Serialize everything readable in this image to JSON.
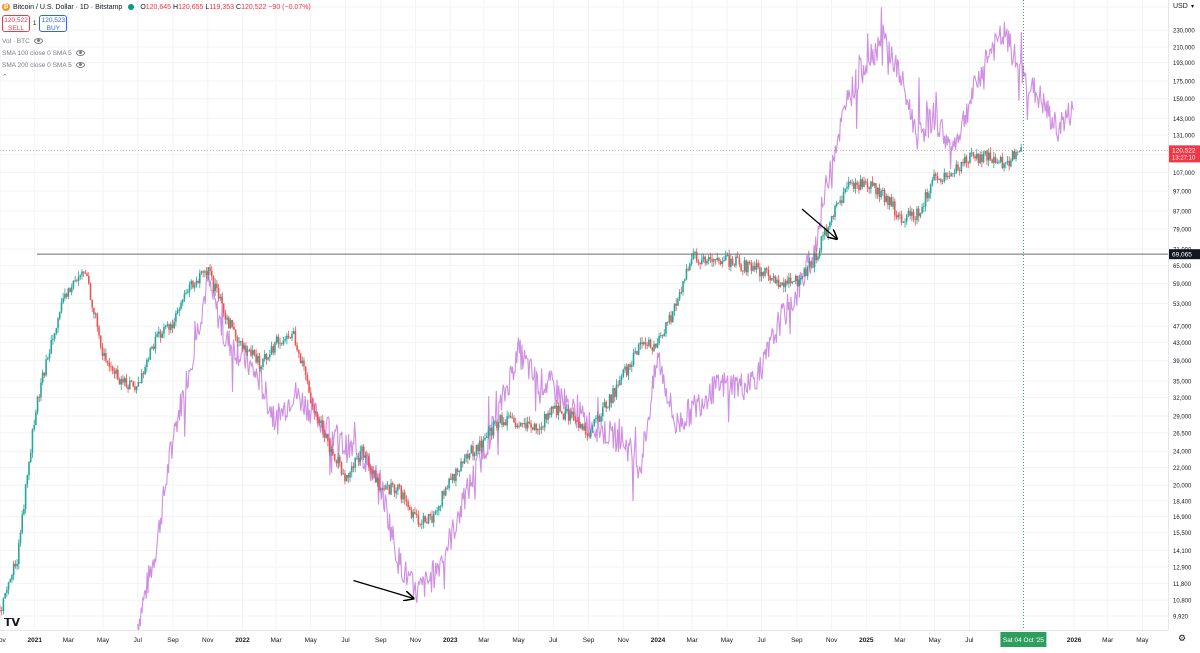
{
  "header": {
    "symbol_title": "Bitcoin / U.S. Dollar · 1D · Bitstamp",
    "ohlc": {
      "o_label": "O",
      "o": "120,645",
      "h_label": "H",
      "h": "120,655",
      "l_label": "L",
      "l": "119,353",
      "c_label": "C",
      "c": "120,522",
      "change": "−90 (−0.07%)"
    },
    "sell_price": "120,522",
    "sell_label": "SELL",
    "spread": "1",
    "buy_price": "120,523",
    "buy_label": "BUY",
    "indicators": [
      "Vol · BTC",
      "SMA 100 close 0 SMA 5",
      "SMA 200 close 0 SMA 5"
    ]
  },
  "price_axis": {
    "currency": "USD",
    "last_price": "120,522",
    "countdown": "13:27:10",
    "level_label": "69,065"
  },
  "time_axis": {
    "crosshair_label": "Sat 04 Oct '25"
  },
  "colors": {
    "up": "#26a69a",
    "down": "#ef5350",
    "overlay": "#c77bdd",
    "level": "#6b6b6b",
    "crosshair": "#2e9e5e",
    "price": "#f23645"
  },
  "chart_data": {
    "type": "line",
    "title": "Bitcoin / U.S. Dollar · 1D · Bitstamp",
    "y_scale": "log",
    "ylim": [
      9200,
      270000
    ],
    "xlim": [
      "2020-11-01",
      "2026-06-15"
    ],
    "y_ticks": [
      9920,
      10800,
      11800,
      12900,
      14100,
      15500,
      16900,
      18400,
      20000,
      22000,
      24000,
      26500,
      29000,
      32000,
      35000,
      39000,
      43000,
      47000,
      53000,
      59000,
      65000,
      71000,
      79000,
      87000,
      97000,
      107000,
      118000,
      131000,
      143000,
      159000,
      175000,
      193000,
      210000,
      230000,
      260000
    ],
    "x_ticks": [
      {
        "date": "2020-11-01",
        "label": "Nov"
      },
      {
        "date": "2021-01-01",
        "label": "2021"
      },
      {
        "date": "2021-03-01",
        "label": "Mar"
      },
      {
        "date": "2021-05-01",
        "label": "May"
      },
      {
        "date": "2021-07-01",
        "label": "Jul"
      },
      {
        "date": "2021-09-01",
        "label": "Sep"
      },
      {
        "date": "2021-11-01",
        "label": "Nov"
      },
      {
        "date": "2022-01-01",
        "label": "2022"
      },
      {
        "date": "2022-03-01",
        "label": "Mar"
      },
      {
        "date": "2022-05-01",
        "label": "May"
      },
      {
        "date": "2022-07-01",
        "label": "Jul"
      },
      {
        "date": "2022-09-01",
        "label": "Sep"
      },
      {
        "date": "2022-11-01",
        "label": "Nov"
      },
      {
        "date": "2023-01-01",
        "label": "2023"
      },
      {
        "date": "2023-03-01",
        "label": "Mar"
      },
      {
        "date": "2023-05-01",
        "label": "May"
      },
      {
        "date": "2023-07-01",
        "label": "Jul"
      },
      {
        "date": "2023-09-01",
        "label": "Sep"
      },
      {
        "date": "2023-11-01",
        "label": "Nov"
      },
      {
        "date": "2024-01-01",
        "label": "2024"
      },
      {
        "date": "2024-03-01",
        "label": "Mar"
      },
      {
        "date": "2024-05-01",
        "label": "May"
      },
      {
        "date": "2024-07-01",
        "label": "Jul"
      },
      {
        "date": "2024-09-01",
        "label": "Sep"
      },
      {
        "date": "2024-11-01",
        "label": "Nov"
      },
      {
        "date": "2025-01-01",
        "label": "2025"
      },
      {
        "date": "2025-03-01",
        "label": "Mar"
      },
      {
        "date": "2025-05-01",
        "label": "May"
      },
      {
        "date": "2025-07-01",
        "label": "Jul"
      },
      {
        "date": "2026-01-01",
        "label": "2026"
      },
      {
        "date": "2026-03-01",
        "label": "Mar"
      },
      {
        "date": "2026-05-01",
        "label": "May"
      }
    ],
    "series": [
      {
        "kind": "candles",
        "dates": [
          "2020-11-01",
          "2020-12-01",
          "2021-01-01",
          "2021-02-01",
          "2021-03-01",
          "2021-04-01",
          "2021-05-01",
          "2021-06-01",
          "2021-07-01",
          "2021-08-01",
          "2021-09-01",
          "2021-10-01",
          "2021-11-01",
          "2021-12-01",
          "2022-01-01",
          "2022-02-01",
          "2022-03-01",
          "2022-04-01",
          "2022-05-01",
          "2022-06-01",
          "2022-07-01",
          "2022-08-01",
          "2022-09-01",
          "2022-10-01",
          "2022-11-01",
          "2022-12-01",
          "2023-01-01",
          "2023-02-01",
          "2023-03-01",
          "2023-04-01",
          "2023-05-01",
          "2023-06-01",
          "2023-07-01",
          "2023-08-01",
          "2023-09-01",
          "2023-10-01",
          "2023-11-01",
          "2023-12-01",
          "2024-01-01",
          "2024-02-01",
          "2024-03-01",
          "2024-04-01",
          "2024-05-01",
          "2024-06-01",
          "2024-07-01",
          "2024-08-01",
          "2024-09-01",
          "2024-10-01",
          "2024-11-01",
          "2024-12-01",
          "2025-01-01",
          "2025-02-01",
          "2025-03-01",
          "2025-04-01",
          "2025-05-01",
          "2025-06-01",
          "2025-07-01",
          "2025-08-01",
          "2025-09-01",
          "2025-10-01"
        ],
        "values": [
          10200,
          13500,
          29000,
          45000,
          57000,
          63000,
          40000,
          35000,
          34000,
          44000,
          48000,
          58000,
          63000,
          50000,
          42000,
          38500,
          43000,
          45000,
          32000,
          25000,
          21000,
          24000,
          19500,
          19800,
          16500,
          16800,
          20500,
          23500,
          25500,
          28500,
          27500,
          27000,
          30000,
          29000,
          26500,
          30500,
          36000,
          42000,
          42500,
          52000,
          68000,
          66000,
          67000,
          65000,
          63000,
          59000,
          60000,
          67000,
          84000,
          99000,
          102000,
          95000,
          84000,
          86000,
          104000,
          107000,
          115000,
          117000,
          112000,
          120522
        ]
      },
      {
        "kind": "line",
        "dates": [
          "2021-07-01",
          "2021-08-01",
          "2021-09-01",
          "2021-10-01",
          "2021-11-01",
          "2021-12-01",
          "2022-01-01",
          "2022-02-01",
          "2022-03-01",
          "2022-04-01",
          "2022-05-01",
          "2022-06-01",
          "2022-07-01",
          "2022-08-01",
          "2022-09-01",
          "2022-10-01",
          "2022-11-01",
          "2022-12-01",
          "2023-01-01",
          "2023-02-01",
          "2023-03-01",
          "2023-04-01",
          "2023-05-01",
          "2023-06-01",
          "2023-07-01",
          "2023-08-01",
          "2023-09-01",
          "2023-10-01",
          "2023-11-01",
          "2023-12-01",
          "2024-01-01",
          "2024-02-01",
          "2024-03-01",
          "2024-04-01",
          "2024-05-01",
          "2024-06-01",
          "2024-07-01",
          "2024-08-01",
          "2024-09-01",
          "2024-10-01",
          "2024-11-01",
          "2024-12-01",
          "2025-01-01",
          "2025-02-01",
          "2025-03-01",
          "2025-04-01",
          "2025-05-01",
          "2025-06-01",
          "2025-07-01",
          "2025-08-01",
          "2025-09-01",
          "2025-10-01",
          "2025-11-01",
          "2025-12-01",
          "2026-01-01"
        ],
        "values": [
          9500,
          14000,
          26000,
          38000,
          60000,
          44000,
          40000,
          35000,
          28000,
          33000,
          30000,
          27000,
          24500,
          23500,
          20000,
          13500,
          11200,
          12200,
          15000,
          19500,
          24000,
          31000,
          41000,
          35000,
          34000,
          30000,
          28000,
          26500,
          25500,
          22000,
          40000,
          27500,
          30000,
          33000,
          34500,
          34000,
          37000,
          48000,
          56000,
          70000,
          115000,
          160000,
          195000,
          220000,
          180000,
          130000,
          145000,
          120000,
          155000,
          200000,
          225000,
          180000,
          160000,
          135000,
          150000
        ]
      }
    ],
    "horizontal_level": 69065,
    "crosshair_date": "2025-10-04",
    "annotations": [
      {
        "type": "arrow",
        "from": [
          "2022-07-15",
          12000
        ],
        "to": [
          "2022-10-28",
          10900
        ]
      },
      {
        "type": "arrow",
        "from": [
          "2024-09-10",
          88000
        ],
        "to": [
          "2024-11-10",
          75000
        ]
      }
    ]
  }
}
